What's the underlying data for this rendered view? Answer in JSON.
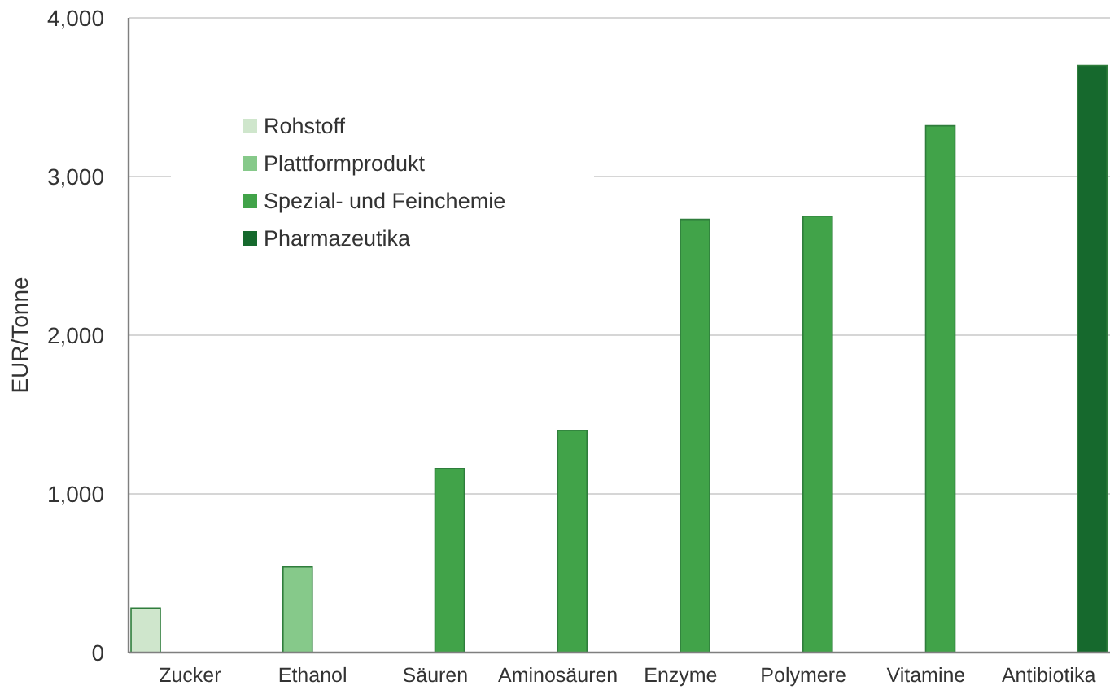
{
  "chart_data": {
    "type": "bar",
    "ylabel": "EUR/Tonne",
    "categories": [
      "Zucker",
      "Ethanol",
      "Säuren",
      "Aminosäuren",
      "Enzyme",
      "Polymere",
      "Vitamine",
      "Antibiotika"
    ],
    "series": [
      {
        "name": "Rohstoff",
        "color": "#cfe6cc",
        "values": [
          280,
          null,
          null,
          null,
          null,
          null,
          null,
          null
        ]
      },
      {
        "name": "Plattformprodukt",
        "color": "#86c98a",
        "values": [
          null,
          540,
          null,
          null,
          null,
          null,
          null,
          null
        ]
      },
      {
        "name": "Spezial- und Feinchemie",
        "color": "#41a349",
        "values": [
          null,
          null,
          1160,
          1400,
          2730,
          2750,
          3320,
          null
        ]
      },
      {
        "name": "Pharmazeutika",
        "color": "#16692d",
        "values": [
          null,
          null,
          null,
          null,
          null,
          null,
          null,
          3700
        ]
      }
    ],
    "ylim": [
      0,
      4000
    ],
    "yticks": [
      0,
      {
        "value": 1000,
        "label": "1,000"
      },
      {
        "value": 2000,
        "label": "2,000"
      },
      {
        "value": 3000,
        "label": "3,000"
      },
      {
        "value": 4000,
        "label": "4,000"
      }
    ],
    "grid": "y",
    "legend": "top left"
  }
}
